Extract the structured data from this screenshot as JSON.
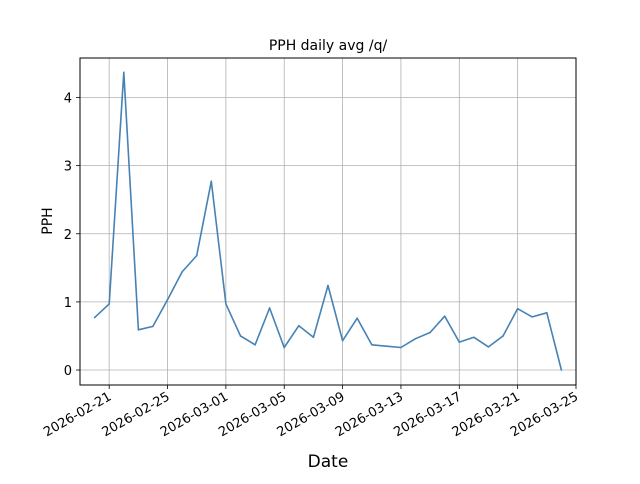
{
  "chart_data": {
    "type": "line",
    "title": "PPH daily avg /q/",
    "xlabel": "Date",
    "ylabel": "PPH",
    "grid": true,
    "color": "#4682b4",
    "x_ticks": [
      "2026-02-21",
      "2026-02-25",
      "2026-03-01",
      "2026-03-05",
      "2026-03-09",
      "2026-03-13",
      "2026-03-17",
      "2026-03-21",
      "2026-03-25"
    ],
    "y_ticks": [
      0,
      1,
      2,
      3,
      4
    ],
    "xlim": [
      "2026-02-19",
      "2026-03-25"
    ],
    "ylim": [
      -0.22,
      4.58
    ],
    "series": [
      {
        "x": [
          "2026-02-20",
          "2026-02-21",
          "2026-02-22",
          "2026-02-23",
          "2026-02-24",
          "2026-02-25",
          "2026-02-26",
          "2026-02-27",
          "2026-02-28",
          "2026-03-01",
          "2026-03-02",
          "2026-03-03",
          "2026-03-04",
          "2026-03-05",
          "2026-03-06",
          "2026-03-07",
          "2026-03-08",
          "2026-03-09",
          "2026-03-10",
          "2026-03-11",
          "2026-03-12",
          "2026-03-13",
          "2026-03-14",
          "2026-03-15",
          "2026-03-16",
          "2026-03-17",
          "2026-03-18",
          "2026-03-19",
          "2026-03-20",
          "2026-03-21",
          "2026-03-22",
          "2026-03-23",
          "2026-03-24"
        ],
        "values": [
          0.77,
          0.97,
          4.37,
          0.59,
          0.64,
          1.03,
          1.44,
          1.68,
          2.77,
          0.97,
          0.5,
          0.37,
          0.91,
          0.33,
          0.65,
          0.48,
          1.24,
          0.43,
          0.76,
          0.37,
          0.35,
          0.33,
          0.46,
          0.55,
          0.79,
          0.41,
          0.48,
          0.34,
          0.5,
          0.9,
          0.78,
          0.84,
          0.0
        ]
      }
    ]
  }
}
